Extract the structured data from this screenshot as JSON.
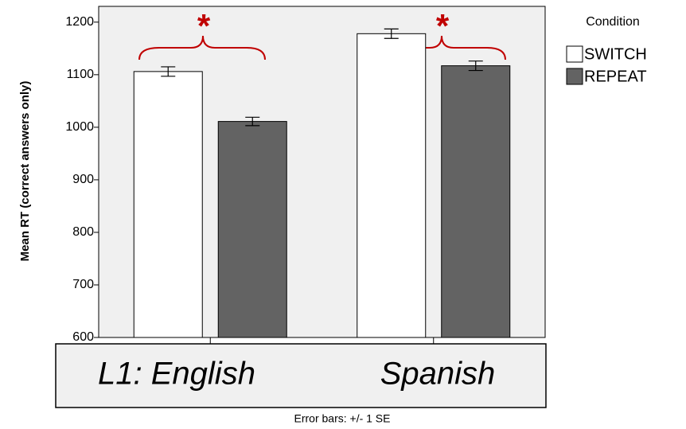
{
  "chart_data": {
    "type": "bar",
    "y_label": "Mean RT (correct answers only)",
    "categories": [
      "L1: English",
      "Spanish"
    ],
    "series": [
      {
        "name": "SWITCH",
        "color": "#ffffff",
        "values": [
          1106,
          1178
        ],
        "errors": [
          9,
          9
        ]
      },
      {
        "name": "REPEAT",
        "color": "#636363",
        "values": [
          1011,
          1117
        ],
        "errors": [
          8,
          9
        ]
      }
    ],
    "ylim": [
      600,
      1230
    ],
    "yticks": [
      600,
      700,
      800,
      900,
      1000,
      1100,
      1200
    ],
    "legend_title": "Condition",
    "annotations": [
      "*",
      "*"
    ],
    "footer": "Error bars: +/- 1 SE"
  }
}
